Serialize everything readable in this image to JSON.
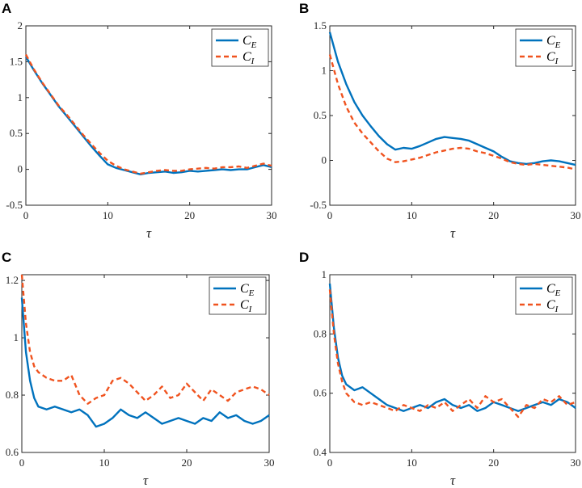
{
  "colors": {
    "ce": "#0072BD",
    "ci": "#F0531F"
  },
  "chart_data": [
    {
      "panel": "A",
      "type": "line",
      "xlabel": "τ",
      "xlim": [
        0,
        30
      ],
      "ylim": [
        -0.5,
        2
      ],
      "xticks": [
        "0",
        "10",
        "20",
        "30"
      ],
      "yticks": [
        "-0.5",
        "0",
        "0.5",
        "1",
        "1.5",
        "2"
      ],
      "ytick_values": [
        -0.5,
        0,
        0.5,
        1,
        1.5,
        2
      ],
      "legend": [
        "C_E",
        "C_I"
      ],
      "series": [
        {
          "name": "C_E",
          "x": [
            0,
            1,
            2,
            3,
            4,
            5,
            6,
            7,
            8,
            9,
            10,
            11,
            12,
            13,
            14,
            15,
            16,
            17,
            18,
            19,
            20,
            21,
            22,
            23,
            24,
            25,
            26,
            27,
            28,
            29,
            30
          ],
          "values": [
            1.57,
            1.38,
            1.2,
            1.04,
            0.88,
            0.74,
            0.6,
            0.46,
            0.32,
            0.19,
            0.07,
            0.02,
            -0.01,
            -0.04,
            -0.07,
            -0.05,
            -0.04,
            -0.03,
            -0.05,
            -0.04,
            -0.02,
            -0.03,
            -0.02,
            -0.01,
            0.0,
            -0.01,
            0.0,
            0.0,
            0.03,
            0.06,
            0.03
          ]
        },
        {
          "name": "C_I",
          "x": [
            0,
            1,
            2,
            3,
            4,
            5,
            6,
            7,
            8,
            9,
            10,
            11,
            12,
            13,
            14,
            15,
            16,
            17,
            18,
            19,
            20,
            21,
            22,
            23,
            24,
            25,
            26,
            27,
            28,
            29,
            30
          ],
          "values": [
            1.6,
            1.39,
            1.21,
            1.05,
            0.89,
            0.76,
            0.62,
            0.48,
            0.35,
            0.23,
            0.12,
            0.05,
            0.0,
            -0.03,
            -0.06,
            -0.04,
            -0.02,
            -0.01,
            -0.02,
            -0.02,
            0.0,
            0.01,
            0.02,
            0.01,
            0.03,
            0.03,
            0.04,
            0.02,
            0.05,
            0.08,
            0.05
          ]
        }
      ]
    },
    {
      "panel": "B",
      "type": "line",
      "xlabel": "τ",
      "xlim": [
        0,
        30
      ],
      "ylim": [
        -0.5,
        1.5
      ],
      "xticks": [
        "0",
        "10",
        "20",
        "30"
      ],
      "yticks": [
        "-0.5",
        "0",
        "0.5",
        "1",
        "1.5"
      ],
      "ytick_values": [
        -0.5,
        0,
        0.5,
        1,
        1.5
      ],
      "legend": [
        "C_E",
        "C_I"
      ],
      "series": [
        {
          "name": "C_E",
          "x": [
            0,
            1,
            2,
            3,
            4,
            5,
            6,
            7,
            8,
            9,
            10,
            11,
            12,
            13,
            14,
            15,
            16,
            17,
            18,
            19,
            20,
            21,
            22,
            23,
            24,
            25,
            26,
            27,
            28,
            29,
            30
          ],
          "values": [
            1.43,
            1.1,
            0.85,
            0.65,
            0.5,
            0.38,
            0.27,
            0.18,
            0.12,
            0.14,
            0.13,
            0.16,
            0.2,
            0.24,
            0.26,
            0.25,
            0.24,
            0.22,
            0.18,
            0.14,
            0.1,
            0.04,
            -0.01,
            -0.03,
            -0.04,
            -0.03,
            -0.01,
            0.0,
            -0.01,
            -0.03,
            -0.05
          ]
        },
        {
          "name": "C_I",
          "x": [
            0,
            1,
            2,
            3,
            4,
            5,
            6,
            7,
            8,
            9,
            10,
            11,
            12,
            13,
            14,
            15,
            16,
            17,
            18,
            19,
            20,
            21,
            22,
            23,
            24,
            25,
            26,
            27,
            28,
            29,
            30
          ],
          "values": [
            1.18,
            0.85,
            0.6,
            0.42,
            0.3,
            0.2,
            0.1,
            0.02,
            -0.02,
            -0.01,
            0.01,
            0.03,
            0.06,
            0.09,
            0.11,
            0.13,
            0.14,
            0.13,
            0.1,
            0.08,
            0.05,
            0.02,
            -0.02,
            -0.04,
            -0.05,
            -0.04,
            -0.05,
            -0.06,
            -0.07,
            -0.08,
            -0.1
          ]
        }
      ]
    },
    {
      "panel": "C",
      "type": "line",
      "xlabel": "τ",
      "xlim": [
        0,
        30
      ],
      "ylim": [
        0.6,
        1.22
      ],
      "xticks": [
        "0",
        "10",
        "20",
        "30"
      ],
      "yticks": [
        "0.6",
        "0.8",
        "1",
        "1.2"
      ],
      "ytick_values": [
        0.6,
        0.8,
        1.0,
        1.2
      ],
      "legend": [
        "C_E",
        "C_I"
      ],
      "series": [
        {
          "name": "C_E",
          "x": [
            0,
            0.5,
            1,
            1.5,
            2,
            3,
            4,
            5,
            6,
            7,
            8,
            9,
            10,
            11,
            12,
            13,
            14,
            15,
            16,
            17,
            18,
            19,
            20,
            21,
            22,
            23,
            24,
            25,
            26,
            27,
            28,
            29,
            30
          ],
          "values": [
            1.14,
            0.95,
            0.85,
            0.79,
            0.76,
            0.75,
            0.76,
            0.75,
            0.74,
            0.75,
            0.73,
            0.69,
            0.7,
            0.72,
            0.75,
            0.73,
            0.72,
            0.74,
            0.72,
            0.7,
            0.71,
            0.72,
            0.71,
            0.7,
            0.72,
            0.71,
            0.74,
            0.72,
            0.73,
            0.71,
            0.7,
            0.71,
            0.73
          ]
        },
        {
          "name": "C_I",
          "x": [
            0,
            0.5,
            1,
            1.5,
            2,
            3,
            4,
            5,
            6,
            7,
            8,
            9,
            10,
            11,
            12,
            13,
            14,
            15,
            16,
            17,
            18,
            19,
            20,
            21,
            22,
            23,
            24,
            25,
            26,
            27,
            28,
            29,
            30
          ],
          "values": [
            1.22,
            1.05,
            0.95,
            0.9,
            0.88,
            0.86,
            0.85,
            0.85,
            0.87,
            0.8,
            0.77,
            0.79,
            0.8,
            0.85,
            0.86,
            0.84,
            0.81,
            0.78,
            0.8,
            0.83,
            0.79,
            0.8,
            0.84,
            0.81,
            0.78,
            0.82,
            0.8,
            0.78,
            0.81,
            0.82,
            0.83,
            0.82,
            0.8
          ]
        }
      ]
    },
    {
      "panel": "D",
      "type": "line",
      "xlabel": "τ",
      "xlim": [
        0,
        30
      ],
      "ylim": [
        0.4,
        1.0
      ],
      "xticks": [
        "0",
        "10",
        "20",
        "30"
      ],
      "yticks": [
        "0.4",
        "0.6",
        "0.8",
        "1"
      ],
      "ytick_values": [
        0.4,
        0.6,
        0.8,
        1.0
      ],
      "legend": [
        "C_E",
        "C_I"
      ],
      "series": [
        {
          "name": "C_E",
          "x": [
            0,
            0.5,
            1,
            1.5,
            2,
            3,
            4,
            5,
            6,
            7,
            8,
            9,
            10,
            11,
            12,
            13,
            14,
            15,
            16,
            17,
            18,
            19,
            20,
            21,
            22,
            23,
            24,
            25,
            26,
            27,
            28,
            29,
            30
          ],
          "values": [
            0.97,
            0.82,
            0.72,
            0.66,
            0.63,
            0.61,
            0.62,
            0.6,
            0.58,
            0.56,
            0.55,
            0.54,
            0.55,
            0.56,
            0.55,
            0.57,
            0.58,
            0.56,
            0.55,
            0.56,
            0.54,
            0.55,
            0.57,
            0.56,
            0.55,
            0.54,
            0.55,
            0.56,
            0.57,
            0.56,
            0.58,
            0.57,
            0.55
          ]
        },
        {
          "name": "C_I",
          "x": [
            0,
            0.5,
            1,
            1.5,
            2,
            3,
            4,
            5,
            6,
            7,
            8,
            9,
            10,
            11,
            12,
            13,
            14,
            15,
            16,
            17,
            18,
            19,
            20,
            21,
            22,
            23,
            24,
            25,
            26,
            27,
            28,
            29,
            30
          ],
          "values": [
            0.95,
            0.8,
            0.7,
            0.64,
            0.6,
            0.57,
            0.56,
            0.57,
            0.56,
            0.55,
            0.54,
            0.56,
            0.55,
            0.54,
            0.56,
            0.55,
            0.57,
            0.54,
            0.56,
            0.58,
            0.55,
            0.59,
            0.57,
            0.58,
            0.55,
            0.52,
            0.56,
            0.55,
            0.58,
            0.57,
            0.59,
            0.56,
            0.57
          ]
        }
      ]
    }
  ]
}
